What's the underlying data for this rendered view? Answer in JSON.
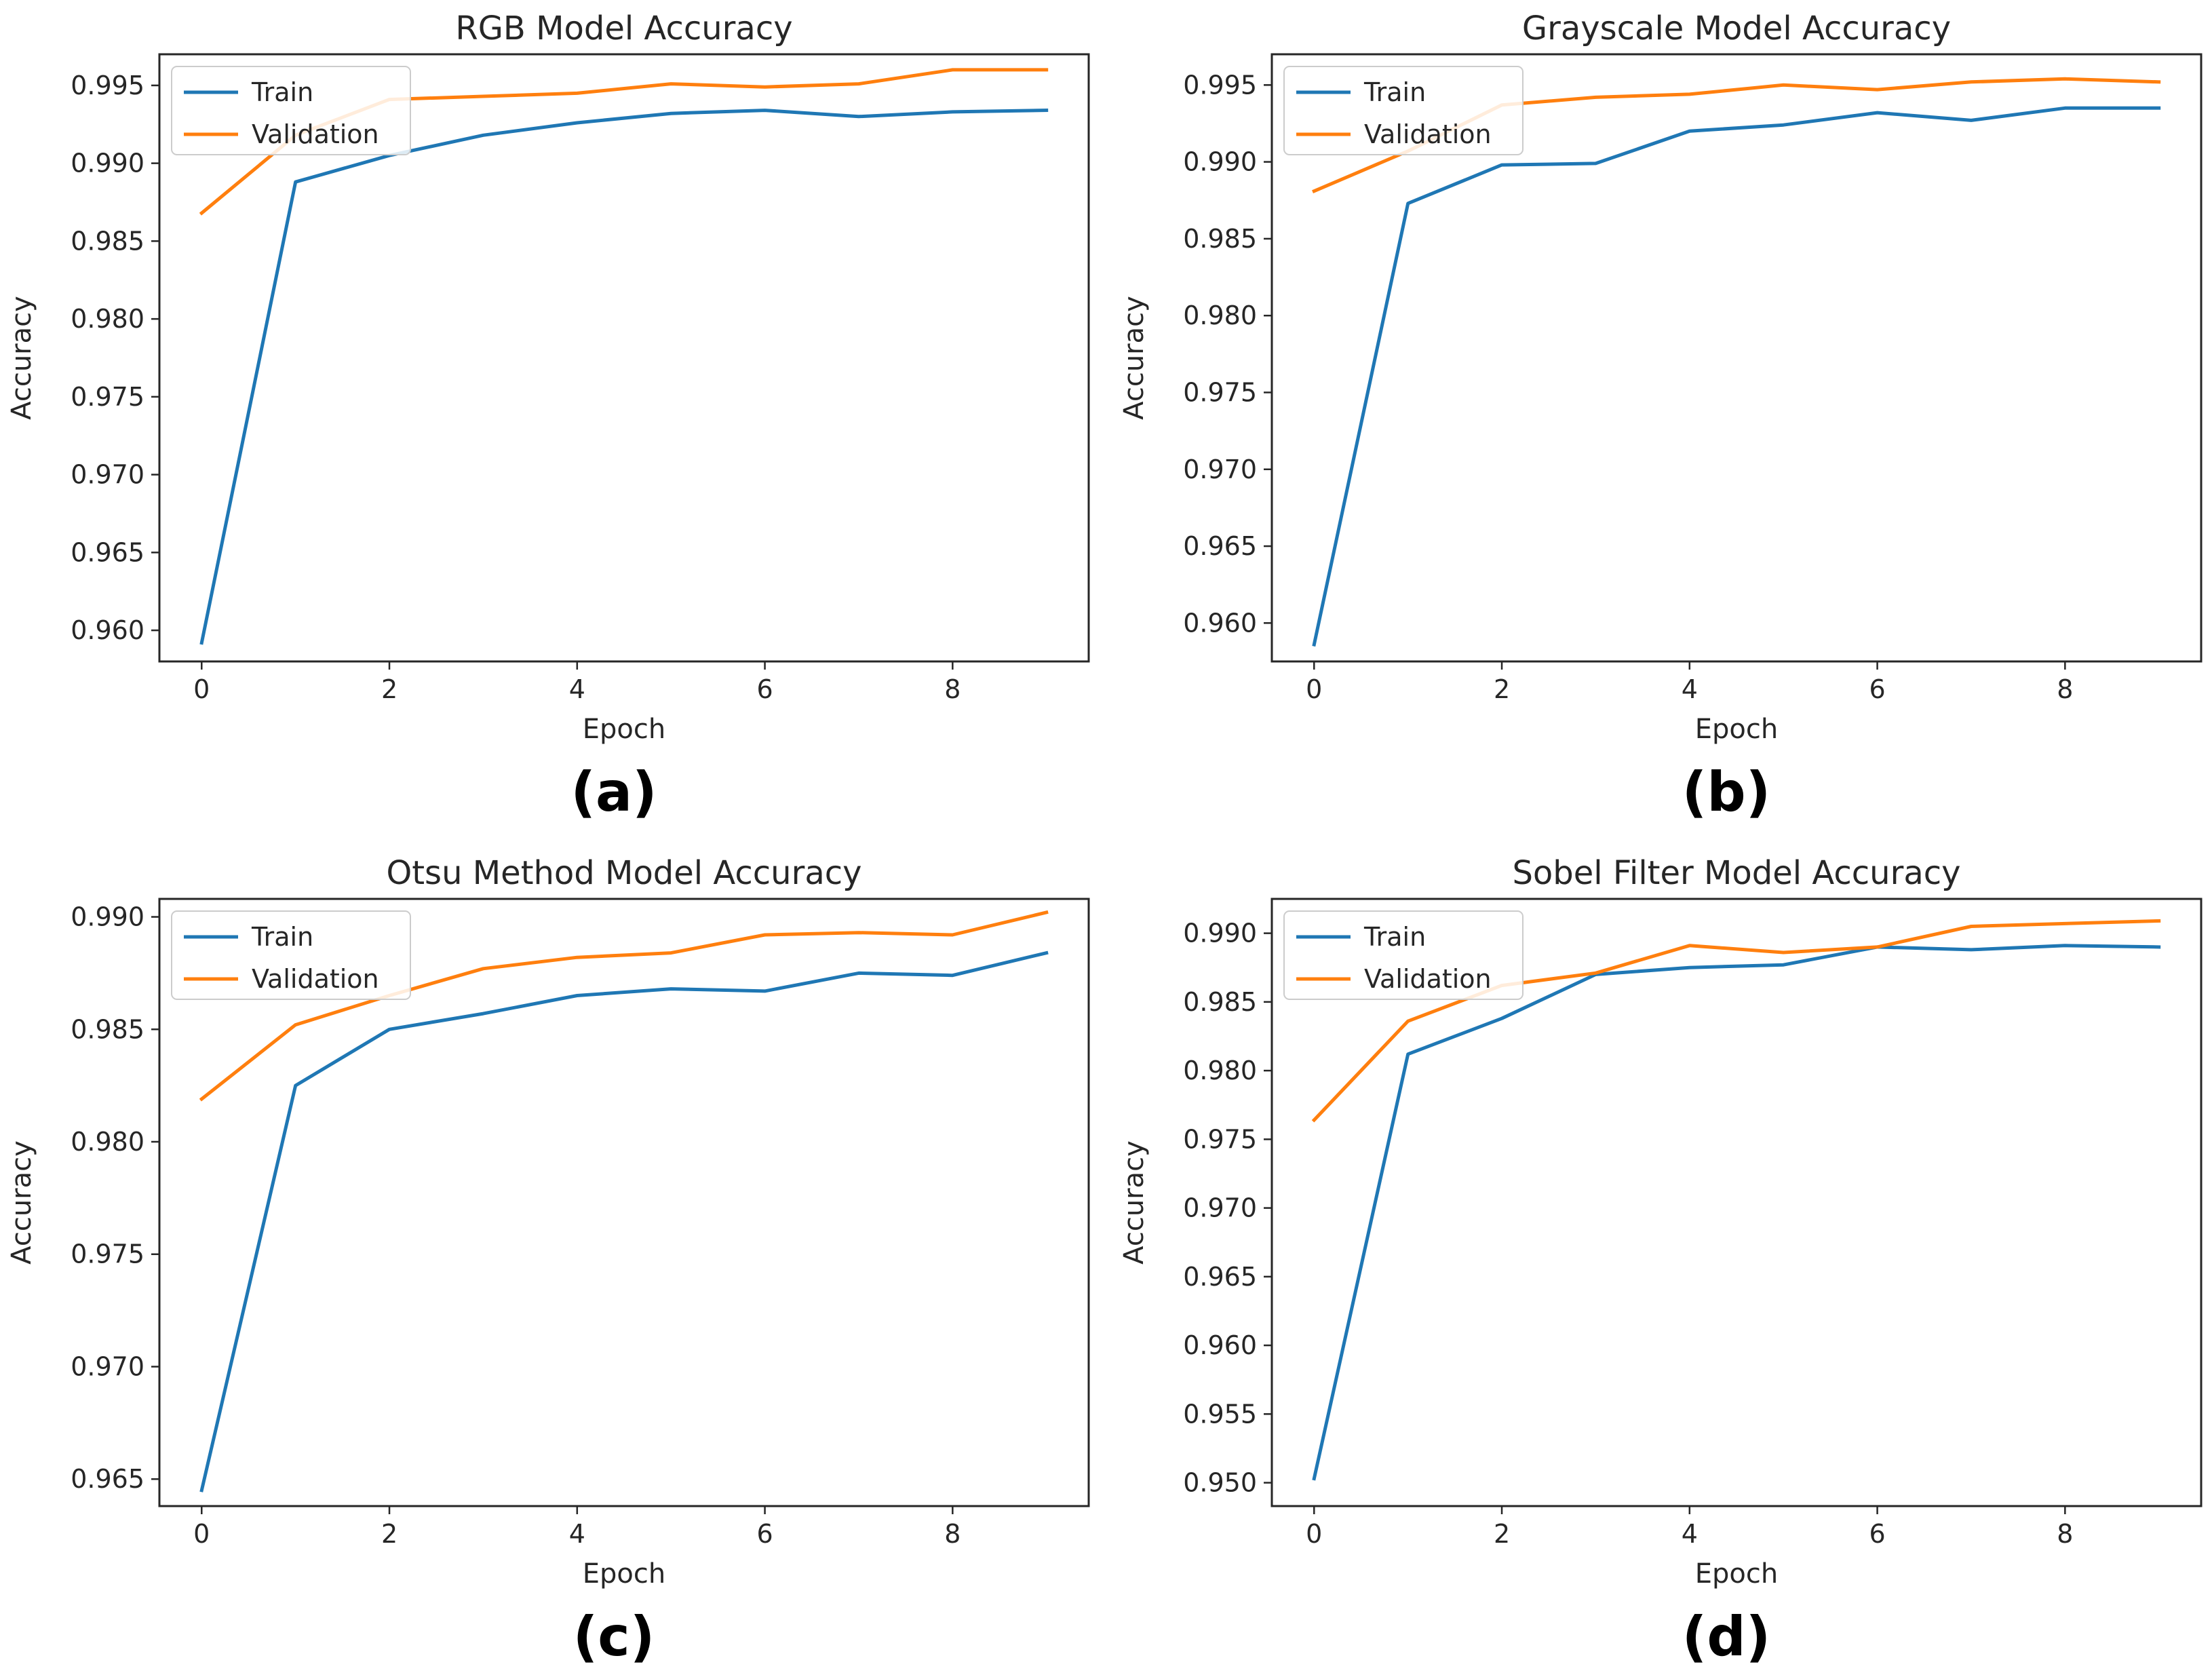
{
  "colors": {
    "train": "#1f77b4",
    "validation": "#ff7f0e",
    "axis": "#262626"
  },
  "chart_data": [
    {
      "type": "line",
      "caption": "(a)",
      "title": "RGB Model Accuracy",
      "xlabel": "Epoch",
      "ylabel": "Accuracy",
      "xlim": [
        -0.45,
        9.45
      ],
      "ylim": [
        0.958,
        0.997
      ],
      "xticks": [
        "0",
        "2",
        "4",
        "6",
        "8"
      ],
      "yticks": [
        "0.960",
        "0.965",
        "0.970",
        "0.975",
        "0.980",
        "0.985",
        "0.990",
        "0.995"
      ],
      "legend": "top-left",
      "x": [
        0,
        1,
        2,
        3,
        4,
        5,
        6,
        7,
        8,
        9
      ],
      "series": [
        {
          "name": "Train",
          "values": [
            0.9592,
            0.9888,
            0.9905,
            0.9918,
            0.9926,
            0.9932,
            0.9934,
            0.993,
            0.9933,
            0.9934
          ]
        },
        {
          "name": "Validation",
          "values": [
            0.9868,
            0.9918,
            0.9941,
            0.9943,
            0.9945,
            0.9951,
            0.9949,
            0.9951,
            0.996,
            0.996
          ]
        }
      ]
    },
    {
      "type": "line",
      "caption": "(b)",
      "title": "Grayscale Model Accuracy",
      "xlabel": "Epoch",
      "ylabel": "Accuracy",
      "xlim": [
        -0.45,
        9.45
      ],
      "ylim": [
        0.9575,
        0.997
      ],
      "xticks": [
        "0",
        "2",
        "4",
        "6",
        "8"
      ],
      "yticks": [
        "0.960",
        "0.965",
        "0.970",
        "0.975",
        "0.980",
        "0.985",
        "0.990",
        "0.995"
      ],
      "legend": "top-left",
      "x": [
        0,
        1,
        2,
        3,
        4,
        5,
        6,
        7,
        8,
        9
      ],
      "series": [
        {
          "name": "Train",
          "values": [
            0.9586,
            0.9873,
            0.9898,
            0.9899,
            0.992,
            0.9924,
            0.9932,
            0.9927,
            0.9935,
            0.9935
          ]
        },
        {
          "name": "Validation",
          "values": [
            0.9881,
            0.9907,
            0.9937,
            0.9942,
            0.9944,
            0.995,
            0.9947,
            0.9952,
            0.9954,
            0.9952
          ]
        }
      ]
    },
    {
      "type": "line",
      "caption": "(c)",
      "title": "Otsu Method Model Accuracy",
      "xlabel": "Epoch",
      "ylabel": "Accuracy",
      "xlim": [
        -0.45,
        9.45
      ],
      "ylim": [
        0.9638,
        0.9908
      ],
      "xticks": [
        "0",
        "2",
        "4",
        "6",
        "8"
      ],
      "yticks": [
        "0.965",
        "0.970",
        "0.975",
        "0.980",
        "0.985",
        "0.990"
      ],
      "legend": "top-left",
      "x": [
        0,
        1,
        2,
        3,
        4,
        5,
        6,
        7,
        8,
        9
      ],
      "series": [
        {
          "name": "Train",
          "values": [
            0.9645,
            0.9825,
            0.985,
            0.9857,
            0.9865,
            0.9868,
            0.9867,
            0.9875,
            0.9874,
            0.9884
          ]
        },
        {
          "name": "Validation",
          "values": [
            0.9819,
            0.9852,
            0.9865,
            0.9877,
            0.9882,
            0.9884,
            0.9892,
            0.9893,
            0.9892,
            0.9902
          ]
        }
      ]
    },
    {
      "type": "line",
      "caption": "(d)",
      "title": "Sobel Filter Model Accuracy",
      "xlabel": "Epoch",
      "ylabel": "Accuracy",
      "xlim": [
        -0.45,
        9.45
      ],
      "ylim": [
        0.9483,
        0.9925
      ],
      "xticks": [
        "0",
        "2",
        "4",
        "6",
        "8"
      ],
      "yticks": [
        "0.950",
        "0.955",
        "0.960",
        "0.965",
        "0.970",
        "0.975",
        "0.980",
        "0.985",
        "0.990"
      ],
      "legend": "top-left",
      "x": [
        0,
        1,
        2,
        3,
        4,
        5,
        6,
        7,
        8,
        9
      ],
      "series": [
        {
          "name": "Train",
          "values": [
            0.9503,
            0.9812,
            0.9838,
            0.987,
            0.9875,
            0.9877,
            0.989,
            0.9888,
            0.9891,
            0.989
          ]
        },
        {
          "name": "Validation",
          "values": [
            0.9764,
            0.9836,
            0.9862,
            0.9871,
            0.9891,
            0.9886,
            0.989,
            0.9905,
            0.9907,
            0.9909
          ]
        }
      ]
    }
  ]
}
